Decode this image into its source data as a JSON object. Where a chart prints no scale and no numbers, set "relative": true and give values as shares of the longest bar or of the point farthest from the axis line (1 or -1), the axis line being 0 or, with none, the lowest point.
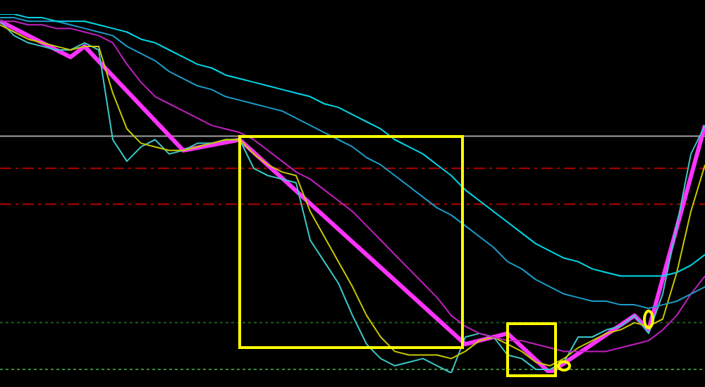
{
  "chart_data": {
    "type": "line",
    "relative": true,
    "grid": false,
    "legend": false,
    "marker": "none",
    "categories": [
      null,
      null,
      null,
      null,
      null,
      null,
      null,
      null,
      null,
      null,
      null,
      null,
      null,
      null,
      null,
      null,
      null,
      null,
      null,
      null,
      null,
      null,
      null,
      null,
      null,
      null,
      null,
      null,
      null,
      null,
      null,
      null,
      null,
      null,
      null,
      null,
      null,
      null,
      null,
      null,
      null,
      null,
      null,
      null,
      null,
      null,
      null,
      null,
      null,
      null,
      null
    ],
    "series": [
      {
        "color": "#00d8e8",
        "values": [
          1.0,
          1.0,
          0.99,
          0.99,
          0.98,
          0.98,
          0.98,
          0.97,
          0.96,
          0.95,
          0.93,
          0.92,
          0.9,
          0.88,
          0.86,
          0.85,
          0.83,
          0.82,
          0.81,
          0.8,
          0.79,
          0.78,
          0.77,
          0.75,
          0.74,
          0.72,
          0.7,
          0.68,
          0.65,
          0.63,
          0.61,
          0.58,
          0.55,
          0.51,
          0.48,
          0.45,
          0.42,
          0.39,
          0.36,
          0.34,
          0.32,
          0.31,
          0.29,
          0.28,
          0.27,
          0.27,
          0.27,
          0.27,
          0.28,
          0.3,
          0.33
        ]
      },
      {
        "color": "#1c9cc8",
        "values": [
          0.99,
          0.99,
          0.98,
          0.98,
          0.98,
          0.97,
          0.96,
          0.95,
          0.94,
          0.91,
          0.89,
          0.87,
          0.84,
          0.82,
          0.8,
          0.79,
          0.77,
          0.76,
          0.75,
          0.74,
          0.73,
          0.71,
          0.69,
          0.67,
          0.65,
          0.63,
          0.6,
          0.58,
          0.55,
          0.52,
          0.49,
          0.46,
          0.44,
          0.41,
          0.38,
          0.35,
          0.31,
          0.29,
          0.26,
          0.24,
          0.22,
          0.21,
          0.2,
          0.2,
          0.19,
          0.19,
          0.18,
          0.19,
          0.2,
          0.22,
          0.24
        ]
      },
      {
        "color": "#c020c0",
        "values": [
          0.98,
          0.98,
          0.97,
          0.97,
          0.96,
          0.96,
          0.95,
          0.94,
          0.92,
          0.86,
          0.81,
          0.77,
          0.75,
          0.73,
          0.71,
          0.69,
          0.68,
          0.67,
          0.65,
          0.62,
          0.59,
          0.56,
          0.54,
          0.51,
          0.48,
          0.45,
          0.41,
          0.37,
          0.33,
          0.29,
          0.25,
          0.21,
          0.16,
          0.13,
          0.11,
          0.1,
          0.09,
          0.09,
          0.08,
          0.07,
          0.06,
          0.06,
          0.06,
          0.06,
          0.07,
          0.08,
          0.09,
          0.12,
          0.16,
          0.22,
          0.27
        ]
      },
      {
        "color": "#c8c800",
        "values": [
          0.97,
          0.95,
          0.93,
          0.92,
          0.91,
          0.9,
          0.91,
          0.91,
          0.78,
          0.68,
          0.64,
          0.63,
          0.62,
          0.62,
          0.63,
          0.64,
          0.65,
          0.65,
          0.61,
          0.58,
          0.56,
          0.55,
          0.45,
          0.38,
          0.31,
          0.24,
          0.16,
          0.1,
          0.06,
          0.05,
          0.05,
          0.05,
          0.04,
          0.06,
          0.09,
          0.1,
          0.08,
          0.06,
          0.03,
          0.02,
          0.04,
          0.07,
          0.09,
          0.11,
          0.12,
          0.14,
          0.13,
          0.15,
          0.28,
          0.45,
          0.58
        ]
      },
      {
        "color": "#3cc8c8",
        "values": [
          0.98,
          0.94,
          0.92,
          0.91,
          0.9,
          0.9,
          0.92,
          0.9,
          0.65,
          0.59,
          0.63,
          0.65,
          0.61,
          0.62,
          0.64,
          0.64,
          0.65,
          0.65,
          0.57,
          0.55,
          0.54,
          0.53,
          0.37,
          0.31,
          0.25,
          0.16,
          0.08,
          0.04,
          0.02,
          0.03,
          0.04,
          0.02,
          0.0,
          0.1,
          0.11,
          0.1,
          0.05,
          0.04,
          0.01,
          0.01,
          0.03,
          0.1,
          0.1,
          0.12,
          0.13,
          0.16,
          0.11,
          0.22,
          0.41,
          0.61,
          0.69
        ]
      },
      {
        "color": "#ff33ff",
        "values": [
          0.98,
          null,
          null,
          null,
          null,
          0.88,
          0.91,
          null,
          null,
          null,
          null,
          null,
          null,
          0.62,
          null,
          null,
          null,
          0.65,
          null,
          null,
          null,
          null,
          null,
          null,
          null,
          null,
          null,
          null,
          null,
          null,
          null,
          null,
          null,
          0.08,
          null,
          null,
          0.11,
          null,
          null,
          0.0,
          null,
          null,
          null,
          null,
          null,
          0.16,
          0.12,
          null,
          null,
          null,
          0.69
        ]
      }
    ],
    "ref_lines": [
      {
        "axis": "y",
        "value": 0.66,
        "color": "#a0a0a0",
        "line_style": "solid"
      },
      {
        "axis": "y",
        "value": 0.57,
        "color": "#b00000",
        "line_style": "dashed"
      },
      {
        "axis": "y",
        "value": 0.47,
        "color": "#b00000",
        "line_style": "dashed"
      },
      {
        "axis": "y",
        "value": 0.14,
        "color": "#1f5a1f",
        "line_style": "dotted"
      },
      {
        "axis": "y",
        "value": 0.01,
        "color": "#3a8a3a",
        "line_style": "dotted"
      }
    ]
  }
}
